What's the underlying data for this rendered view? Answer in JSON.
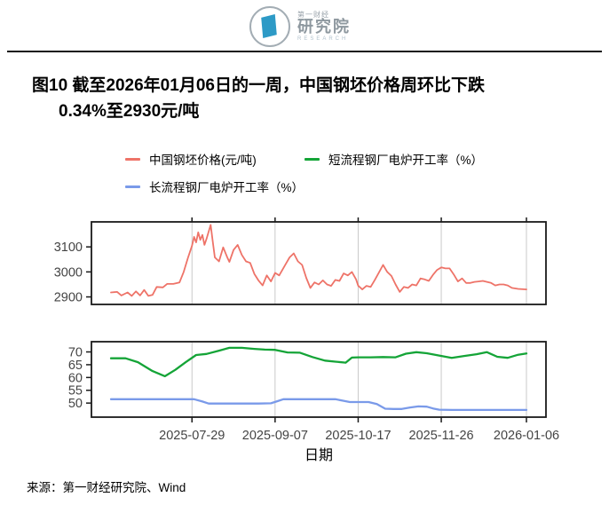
{
  "header": {
    "logo": {
      "cn_small": "第一财经",
      "cn": "研究院",
      "en": "RESEARCH",
      "brand_blue": "#2d9ac6"
    }
  },
  "title": {
    "line1": "图10  截至2026年01月06日的一周，中国钢坯价格周环比下跌",
    "line2": "0.34%至2930元/吨"
  },
  "legend": [
    {
      "label": "中国钢坯价格(元/吨)",
      "color": "#ee7368"
    },
    {
      "label": "短流程钢厂电炉开工率（%）",
      "color": "#14a437"
    },
    {
      "label": "长流程钢厂电炉开工率（%）",
      "color": "#7a9ae9"
    }
  ],
  "source": "来源：第一财经研究院、Wind",
  "chart_data": {
    "type": "line",
    "style": {
      "grid": "#c9c9c9",
      "axis": "#1a1a1a",
      "tick_label": "#444444",
      "grid_horizontal": false,
      "legend_position": "top"
    },
    "x_axis": {
      "label": "日期",
      "domain_days": [
        0,
        200
      ],
      "ticks": [
        {
          "day": 39,
          "label": "2025-07-29"
        },
        {
          "day": 79,
          "label": "2025-09-07"
        },
        {
          "day": 119,
          "label": "2025-10-17"
        },
        {
          "day": 159,
          "label": "2025-11-26"
        },
        {
          "day": 200,
          "label": "2026-01-06"
        }
      ]
    },
    "panels": [
      {
        "name": "billet-price",
        "yticks": [
          2900,
          3000,
          3100
        ],
        "ylim": [
          2870,
          3200
        ],
        "series": [
          {
            "id": "billet-price",
            "name": "中国钢坯价格(元/吨)",
            "color": "#ee7368",
            "width": 1.8,
            "points": [
              [
                0,
                2918
              ],
              [
                3,
                2920
              ],
              [
                5,
                2906
              ],
              [
                8,
                2918
              ],
              [
                10,
                2904
              ],
              [
                12,
                2922
              ],
              [
                14,
                2906
              ],
              [
                16,
                2928
              ],
              [
                18,
                2904
              ],
              [
                20,
                2908
              ],
              [
                22,
                2940
              ],
              [
                25,
                2938
              ],
              [
                27,
                2952
              ],
              [
                30,
                2952
              ],
              [
                33,
                2958
              ],
              [
                35,
                3000
              ],
              [
                37,
                3055
              ],
              [
                39,
                3105
              ],
              [
                40,
                3140
              ],
              [
                41,
                3118
              ],
              [
                42,
                3158
              ],
              [
                43,
                3128
              ],
              [
                44,
                3148
              ],
              [
                45,
                3108
              ],
              [
                46,
                3132
              ],
              [
                48,
                3188
              ],
              [
                49,
                3120
              ],
              [
                50,
                3058
              ],
              [
                52,
                3042
              ],
              [
                54,
                3098
              ],
              [
                56,
                3058
              ],
              [
                57,
                3040
              ],
              [
                59,
                3088
              ],
              [
                61,
                3108
              ],
              [
                63,
                3068
              ],
              [
                65,
                3042
              ],
              [
                67,
                3036
              ],
              [
                69,
                2992
              ],
              [
                71,
                2966
              ],
              [
                73,
                2946
              ],
              [
                75,
                2986
              ],
              [
                77,
                2962
              ],
              [
                79,
                2996
              ],
              [
                81,
                2986
              ],
              [
                84,
                3030
              ],
              [
                86,
                3058
              ],
              [
                88,
                3074
              ],
              [
                90,
                3042
              ],
              [
                92,
                3028
              ],
              [
                94,
                2976
              ],
              [
                96,
                2936
              ],
              [
                98,
                2958
              ],
              [
                100,
                2950
              ],
              [
                102,
                2966
              ],
              [
                104,
                2950
              ],
              [
                106,
                2944
              ],
              [
                108,
                2968
              ],
              [
                110,
                2964
              ],
              [
                112,
                2994
              ],
              [
                114,
                2986
              ],
              [
                116,
                3000
              ],
              [
                118,
                2970
              ],
              [
                119,
                2945
              ],
              [
                121,
                2930
              ],
              [
                123,
                2944
              ],
              [
                125,
                2940
              ],
              [
                127,
                2968
              ],
              [
                129,
                2998
              ],
              [
                131,
                3028
              ],
              [
                133,
                3000
              ],
              [
                135,
                2984
              ],
              [
                137,
                2950
              ],
              [
                139,
                2920
              ],
              [
                141,
                2940
              ],
              [
                143,
                2936
              ],
              [
                145,
                2950
              ],
              [
                147,
                2946
              ],
              [
                149,
                2974
              ],
              [
                151,
                2970
              ],
              [
                153,
                2964
              ],
              [
                155,
                2988
              ],
              [
                157,
                3008
              ],
              [
                159,
                3018
              ],
              [
                161,
                3014
              ],
              [
                163,
                3014
              ],
              [
                165,
                2990
              ],
              [
                167,
                2962
              ],
              [
                169,
                2974
              ],
              [
                171,
                2956
              ],
              [
                173,
                2956
              ],
              [
                175,
                2960
              ],
              [
                177,
                2962
              ],
              [
                179,
                2964
              ],
              [
                181,
                2960
              ],
              [
                183,
                2956
              ],
              [
                185,
                2946
              ],
              [
                187,
                2950
              ],
              [
                189,
                2950
              ],
              [
                191,
                2946
              ],
              [
                193,
                2936
              ],
              [
                196,
                2932
              ],
              [
                200,
                2930
              ]
            ]
          }
        ]
      },
      {
        "name": "operating-rates",
        "yticks": [
          50,
          55,
          60,
          65,
          70
        ],
        "ylim": [
          44.5,
          74
        ],
        "series": [
          {
            "id": "short-process-rate",
            "name": "短流程钢厂电炉开工率（%）",
            "color": "#14a437",
            "width": 2.3,
            "points": [
              [
                0,
                67.5
              ],
              [
                7,
                67.5
              ],
              [
                13,
                66
              ],
              [
                20,
                62.5
              ],
              [
                26,
                60.5
              ],
              [
                31,
                63
              ],
              [
                36,
                66
              ],
              [
                41,
                68.8
              ],
              [
                46,
                69.2
              ],
              [
                52,
                70.5
              ],
              [
                57,
                71.6
              ],
              [
                63,
                71.6
              ],
              [
                69,
                71.2
              ],
              [
                74,
                70.9
              ],
              [
                79,
                70.8
              ],
              [
                85,
                69.8
              ],
              [
                91,
                69.7
              ],
              [
                97,
                68
              ],
              [
                103,
                66.6
              ],
              [
                108,
                66.2
              ],
              [
                113,
                65.8
              ],
              [
                116,
                67.8
              ],
              [
                119,
                67.9
              ],
              [
                125,
                67.9
              ],
              [
                131,
                68
              ],
              [
                137,
                67.9
              ],
              [
                142,
                69.3
              ],
              [
                147,
                69.9
              ],
              [
                152,
                69.5
              ],
              [
                158,
                68.6
              ],
              [
                164,
                67.7
              ],
              [
                170,
                68.4
              ],
              [
                176,
                69.1
              ],
              [
                181,
                69.9
              ],
              [
                186,
                68.1
              ],
              [
                191,
                67.7
              ],
              [
                196,
                68.9
              ],
              [
                200,
                69.4
              ]
            ]
          },
          {
            "id": "long-process-rate",
            "name": "长流程钢厂电炉开工率（%）",
            "color": "#7a9ae9",
            "width": 2.3,
            "points": [
              [
                0,
                51.5
              ],
              [
                10,
                51.5
              ],
              [
                20,
                51.5
              ],
              [
                30,
                51.5
              ],
              [
                40,
                51.5
              ],
              [
                44,
                50.6
              ],
              [
                47,
                49.8
              ],
              [
                55,
                49.8
              ],
              [
                63,
                49.8
              ],
              [
                71,
                49.8
              ],
              [
                77,
                49.9
              ],
              [
                80,
                50.7
              ],
              [
                83,
                51.5
              ],
              [
                92,
                51.5
              ],
              [
                101,
                51.5
              ],
              [
                108,
                51.5
              ],
              [
                112,
                50.9
              ],
              [
                115,
                50.4
              ],
              [
                119,
                50.4
              ],
              [
                124,
                50.4
              ],
              [
                128,
                49.6
              ],
              [
                132,
                47.8
              ],
              [
                136,
                47.7
              ],
              [
                140,
                47.7
              ],
              [
                144,
                48.3
              ],
              [
                148,
                48.7
              ],
              [
                152,
                48.6
              ],
              [
                155,
                47.9
              ],
              [
                158,
                47.4
              ],
              [
                165,
                47.3
              ],
              [
                172,
                47.3
              ],
              [
                179,
                47.3
              ],
              [
                186,
                47.3
              ],
              [
                193,
                47.3
              ],
              [
                200,
                47.3
              ]
            ]
          }
        ]
      }
    ]
  }
}
